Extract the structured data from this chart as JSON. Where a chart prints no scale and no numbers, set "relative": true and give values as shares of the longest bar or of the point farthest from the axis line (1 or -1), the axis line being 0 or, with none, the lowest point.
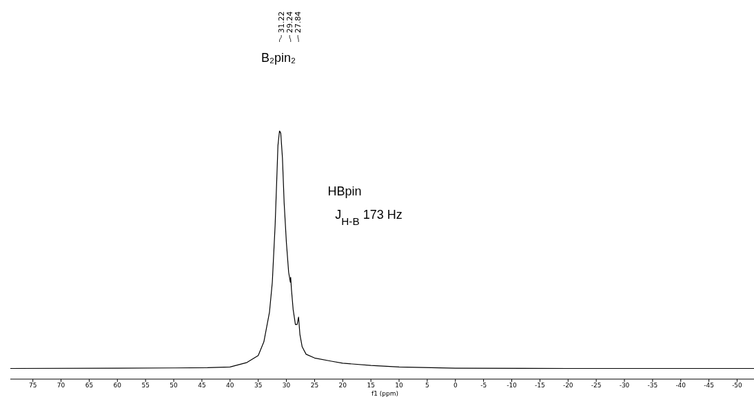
{
  "chart_data": {
    "type": "line",
    "relative": true,
    "xlabel": "f1 (ppm)",
    "xlim": [
      79,
      -53
    ],
    "xticks": [
      75,
      70,
      65,
      60,
      55,
      50,
      45,
      40,
      35,
      30,
      25,
      20,
      15,
      10,
      5,
      0,
      -5,
      -10,
      -15,
      -20,
      -25,
      -30,
      -35,
      -40,
      -45,
      -50
    ],
    "marker": "none",
    "line_style": "solid",
    "series": [
      {
        "color": "#000000",
        "x": [
          79,
          60,
          50,
          44,
          40,
          37,
          35,
          34,
          33,
          32.5,
          32,
          31.7,
          31.5,
          31.22,
          31,
          30.7,
          30.4,
          30,
          29.6,
          29.3,
          29.24,
          29.1,
          28.8,
          28.4,
          28.1,
          27.84,
          27.6,
          27.2,
          26.5,
          25,
          22,
          20,
          15,
          10,
          0,
          -20,
          -53
        ],
        "values": [
          0.043,
          0.044,
          0.045,
          0.046,
          0.049,
          0.067,
          0.095,
          0.15,
          0.27,
          0.39,
          0.62,
          0.81,
          0.94,
          1,
          0.99,
          0.89,
          0.71,
          0.55,
          0.43,
          0.39,
          0.41,
          0.36,
          0.28,
          0.22,
          0.22,
          0.25,
          0.18,
          0.13,
          0.1,
          0.085,
          0.072,
          0.064,
          0.055,
          0.049,
          0.044,
          0.043,
          0.043
        ]
      }
    ],
    "annotations": [
      {
        "text": "31.22",
        "x": 31.22
      },
      {
        "text": "29.24",
        "x": 29.24
      },
      {
        "text": "27.84",
        "x": 27.84
      },
      "B₂pin₂",
      "HBpin",
      "J$_{H-B}$ 173 Hz"
    ]
  }
}
